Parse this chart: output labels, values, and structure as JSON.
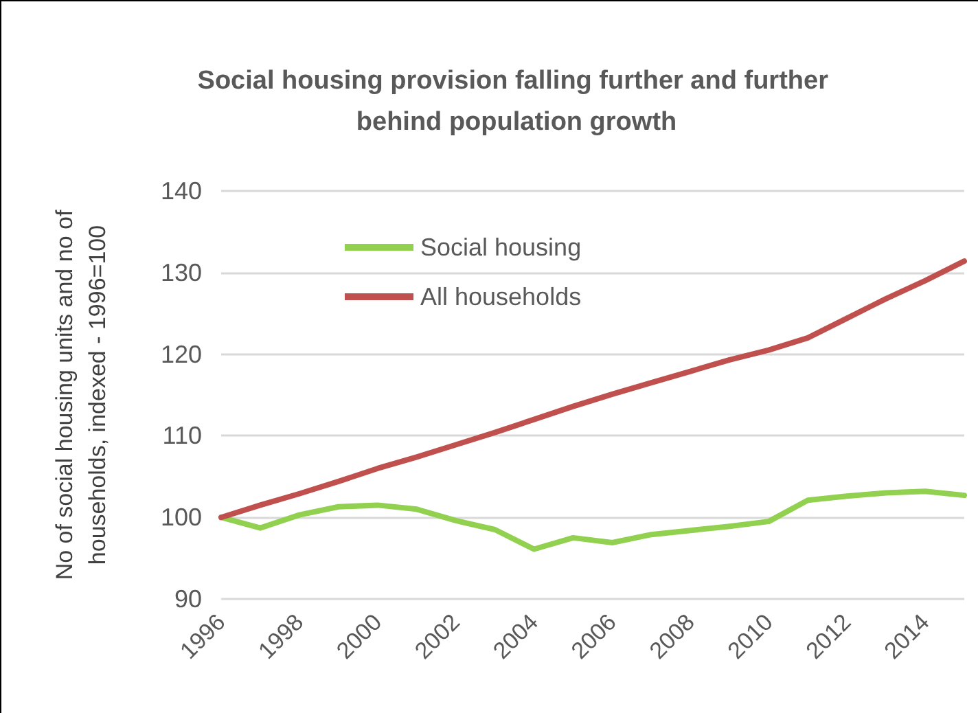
{
  "chart_data": {
    "type": "line",
    "title": "Social housing provision falling further and further behind population growth",
    "ylabel": "No of social housing units and no of households, indexed - 1996=100",
    "categories": [
      "1996",
      null,
      "1998",
      null,
      "2000",
      null,
      "2002",
      null,
      "2004",
      null,
      "2006",
      null,
      "2008",
      null,
      "2010",
      null,
      "2012",
      null,
      "2014",
      null
    ],
    "series": [
      {
        "name": "Social housing",
        "color": "#92d050",
        "values": [
          100,
          98.7,
          100.3,
          101.3,
          101.5,
          101.0,
          99.6,
          98.5,
          96.1,
          97.5,
          96.9,
          97.9,
          98.4,
          98.9,
          99.5,
          102.1,
          102.6,
          103.0,
          103.2,
          102.7
        ]
      },
      {
        "name": "All households",
        "color": "#c0504d",
        "values": [
          100,
          101.5,
          102.9,
          104.4,
          106.0,
          107.4,
          108.9,
          110.4,
          112.0,
          113.6,
          115.1,
          116.5,
          117.9,
          119.3,
          120.5,
          122.0,
          124.4,
          126.8,
          129.0,
          131.4
        ]
      }
    ],
    "ylim": [
      90,
      140
    ],
    "yticks": [
      90,
      100,
      110,
      120,
      130,
      140
    ],
    "grid": "y",
    "legend": "top left",
    "marker": "none",
    "line_style": "solid"
  }
}
